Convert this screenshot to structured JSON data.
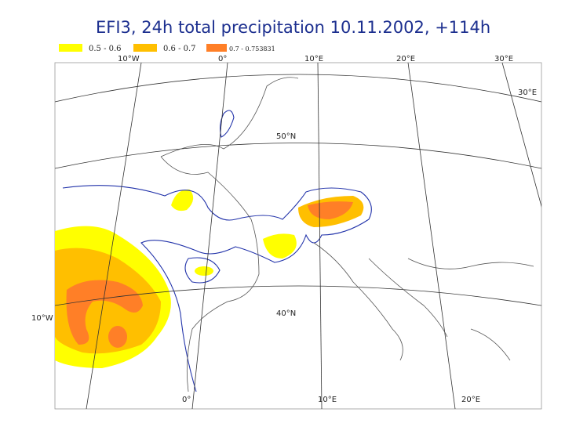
{
  "title": "EFI3, 24h total precipitation  10.11.2002, +114h",
  "legend": [
    {
      "label": "0.5 - 0.6",
      "color": "#ffff00"
    },
    {
      "label": "0.6 - 0.7",
      "color": "#ffbf00"
    },
    {
      "label": "0.7 - 0.753831",
      "color": "#ff7f27"
    }
  ],
  "labels": {
    "top": [
      "10°W",
      "0°",
      "10°E",
      "20°E",
      "30°E"
    ],
    "right": "30°E",
    "lat": [
      "50°N",
      "40°N"
    ],
    "left": "10°W",
    "bottom": [
      "0°",
      "10°E",
      "20°E"
    ]
  }
}
